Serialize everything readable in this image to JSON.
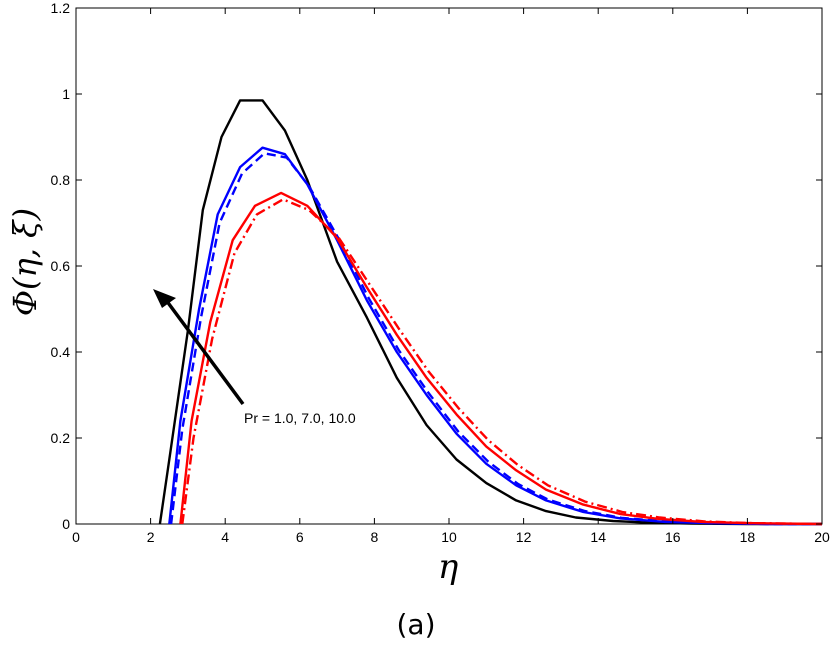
{
  "chart_data": {
    "type": "line",
    "title": "",
    "xlabel": "η",
    "ylabel": "Φ(η, ξ)",
    "xlim": [
      0,
      20
    ],
    "ylim": [
      0,
      1.2
    ],
    "xticks": [
      "0",
      "2",
      "4",
      "6",
      "8",
      "10",
      "12",
      "14",
      "16",
      "18",
      "20"
    ],
    "yticks": [
      "0",
      "0.2",
      "0.4",
      "0.6",
      "0.8",
      "1",
      "1.2"
    ],
    "grid": false,
    "annotation": "Pr = 1.0, 7.0, 10.0",
    "caption": "(a)",
    "series": [
      {
        "color": "#000000",
        "dash": "solid",
        "x": [
          2.25,
          2.5,
          3.0,
          3.4,
          3.9,
          4.4,
          5.0,
          5.6,
          6.2,
          7.0,
          7.8,
          8.6,
          9.4,
          10.2,
          11.0,
          11.8,
          12.6,
          13.4,
          14.4,
          15.4,
          16.5,
          18.0,
          20.0
        ],
        "y": [
          0.0,
          0.15,
          0.45,
          0.73,
          0.9,
          0.985,
          0.985,
          0.915,
          0.8,
          0.61,
          0.48,
          0.34,
          0.23,
          0.15,
          0.095,
          0.055,
          0.03,
          0.015,
          0.007,
          0.003,
          0.001,
          0.0,
          0.0
        ]
      },
      {
        "color": "#0000ff",
        "dash": "solid",
        "x": [
          2.5,
          2.8,
          3.3,
          3.8,
          4.4,
          5.0,
          5.6,
          6.2,
          7.0,
          7.8,
          8.6,
          9.4,
          10.2,
          11.0,
          11.8,
          12.6,
          13.6,
          14.6,
          15.8,
          17.0,
          18.5,
          20.0
        ],
        "y": [
          0.0,
          0.24,
          0.5,
          0.72,
          0.83,
          0.875,
          0.86,
          0.79,
          0.66,
          0.52,
          0.4,
          0.3,
          0.21,
          0.14,
          0.09,
          0.055,
          0.028,
          0.013,
          0.005,
          0.002,
          0.0,
          0.0
        ]
      },
      {
        "color": "#0000ff",
        "dash": "dashed",
        "x": [
          2.55,
          2.85,
          3.35,
          3.85,
          4.45,
          5.05,
          5.65,
          6.25,
          7.05,
          7.85,
          8.65,
          9.45,
          10.25,
          11.05,
          11.85,
          12.65,
          13.65,
          14.65,
          15.85,
          17.05,
          18.55,
          20.0
        ],
        "y": [
          0.0,
          0.22,
          0.48,
          0.7,
          0.815,
          0.862,
          0.852,
          0.785,
          0.662,
          0.525,
          0.405,
          0.305,
          0.215,
          0.145,
          0.093,
          0.057,
          0.03,
          0.014,
          0.006,
          0.002,
          0.0,
          0.0
        ]
      },
      {
        "color": "#ff0000",
        "dash": "solid",
        "x": [
          2.8,
          3.1,
          3.6,
          4.2,
          4.8,
          5.5,
          6.2,
          7.0,
          7.8,
          8.6,
          9.4,
          10.2,
          11.0,
          11.8,
          12.6,
          13.6,
          14.6,
          15.6,
          16.8,
          18.0,
          20.0
        ],
        "y": [
          0.0,
          0.24,
          0.47,
          0.66,
          0.74,
          0.77,
          0.74,
          0.665,
          0.55,
          0.44,
          0.34,
          0.255,
          0.18,
          0.125,
          0.08,
          0.045,
          0.023,
          0.012,
          0.005,
          0.002,
          0.0
        ]
      },
      {
        "color": "#ff0000",
        "dash": "dashdot",
        "x": [
          2.85,
          3.15,
          3.65,
          4.25,
          4.85,
          5.55,
          6.25,
          7.05,
          7.85,
          8.65,
          9.45,
          10.25,
          11.05,
          11.85,
          12.65,
          13.65,
          14.65,
          15.65,
          16.85,
          18.05,
          20.0
        ],
        "y": [
          0.0,
          0.2,
          0.43,
          0.63,
          0.72,
          0.755,
          0.73,
          0.665,
          0.56,
          0.455,
          0.355,
          0.27,
          0.195,
          0.137,
          0.09,
          0.052,
          0.028,
          0.015,
          0.006,
          0.002,
          0.0
        ]
      }
    ]
  }
}
